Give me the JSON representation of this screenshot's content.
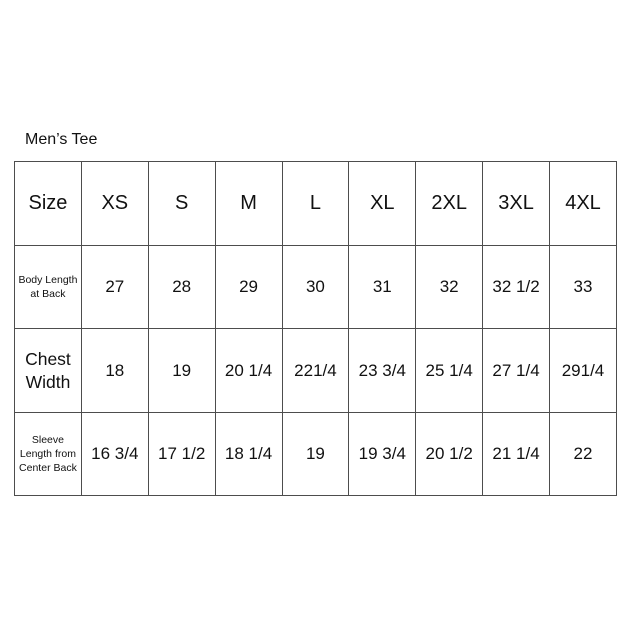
{
  "title": "Men’s Tee",
  "table": {
    "header": [
      "Size",
      "XS",
      "S",
      "M",
      "L",
      "XL",
      "2XL",
      "3XL",
      "4XL"
    ],
    "rows": [
      {
        "label": "Body Length at Back",
        "values": [
          "27",
          "28",
          "29",
          "30",
          "31",
          "32",
          "32 1/2",
          "33"
        ]
      },
      {
        "label": "Chest Width",
        "values": [
          "18",
          "19",
          "20 1/4",
          "221/4",
          "23 3/4",
          "25 1/4",
          "27 1/4",
          "291/4"
        ]
      },
      {
        "label": "Sleeve Length from Center Back",
        "values": [
          "16 3/4",
          "17 1/2",
          "18 1/4",
          "19",
          "19 3/4",
          "20 1/2",
          "21 1/4",
          "22"
        ]
      }
    ]
  },
  "colors": {
    "background": "#ffffff",
    "grid_line": "#4d4d4d",
    "text": "#111111"
  }
}
